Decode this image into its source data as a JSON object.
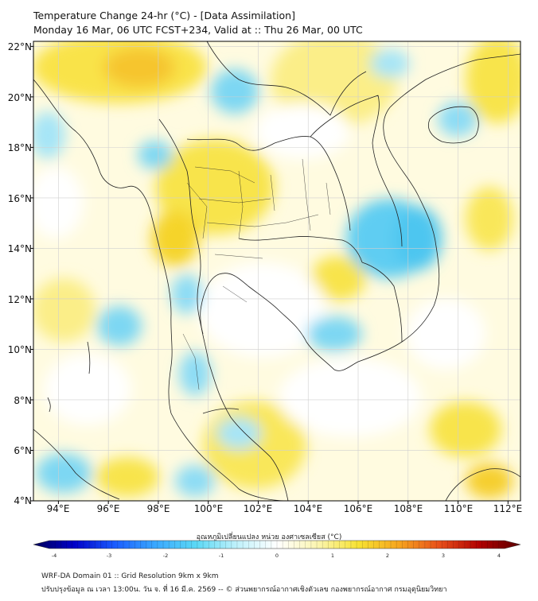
{
  "header": {
    "title_line1": "Temperature Change 24-hr (°C) - [Data Assimilation]",
    "title_line2": "Monday 16 Mar, 06 UTC FCST+234, Valid at :: Thu 26 Mar, 00 UTC"
  },
  "map": {
    "lat_labels": [
      "22°N",
      "20°N",
      "18°N",
      "16°N",
      "14°N",
      "12°N",
      "10°N",
      "8°N",
      "6°N",
      "4°N"
    ],
    "lon_labels": [
      "94°E",
      "96°E",
      "98°E",
      "100°E",
      "102°E",
      "104°E",
      "106°E",
      "108°E",
      "110°E",
      "112°E"
    ],
    "lon_range": [
      93,
      112.5
    ],
    "lat_range": [
      4,
      22.2
    ],
    "grid": true,
    "colors": {
      "warm": "#f7e233",
      "cool": "#3fc6f0",
      "neutral": "#ffffff",
      "border": "#222222"
    }
  },
  "colorbar": {
    "label": "อุณหภูมิเปลี่ยนแปลง หน่วย องศาเซลเซียส (°C)",
    "ticks": [
      "-4",
      "-3",
      "-2",
      "-1",
      "0",
      "1",
      "2",
      "3",
      "4"
    ],
    "range": [
      -4,
      4
    ],
    "stops": [
      "#00005a",
      "#0000c8",
      "#1a5cff",
      "#3aa8ff",
      "#5ad8f5",
      "#bff1fb",
      "#ffffff",
      "#fbf5b0",
      "#f7e233",
      "#f6a51e",
      "#e8501a",
      "#b00000",
      "#5a0000"
    ]
  },
  "footer": {
    "line1": "WRF-DA Domain 01 :: Grid Resolution 9km x 9km",
    "line2": "ปรับปรุงข้อมูล ณ เวลา 13:00น. วัน จ. ที่ 16 มี.ค. 2569 -- © ส่วนพยากรณ์อากาศเชิงตัวเลข กองพยากรณ์อากาศ กรมอุตุนิยมวิทยา"
  }
}
